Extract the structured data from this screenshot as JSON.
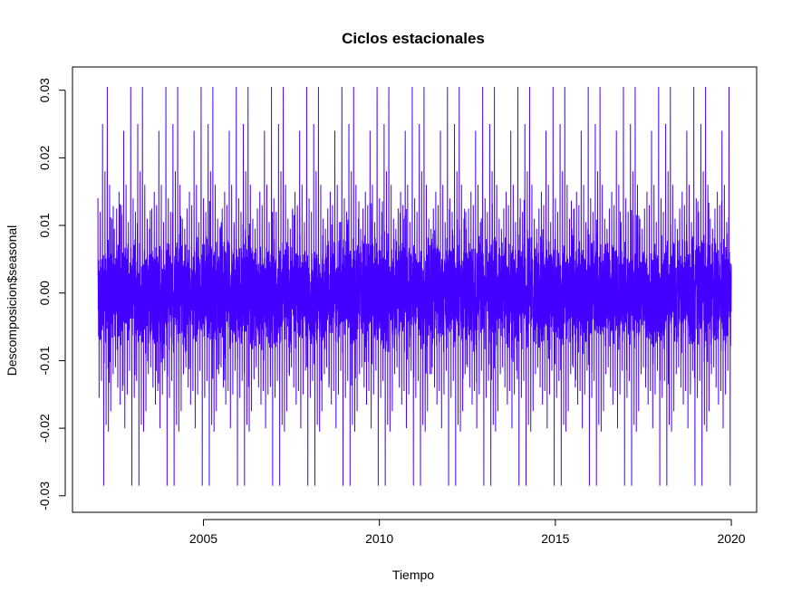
{
  "chart_data": {
    "type": "line",
    "title": "Ciclos estacionales",
    "xlabel": "Tiempo",
    "ylabel": "Descomposicion$seasonal",
    "xlim": [
      2002,
      2020
    ],
    "ylim": [
      -0.03,
      0.031
    ],
    "x_ticks": [
      2005,
      2010,
      2015,
      2020
    ],
    "y_ticks": [
      -0.03,
      -0.02,
      -0.01,
      0.0,
      0.01,
      0.02,
      0.03
    ],
    "y_tick_labels": [
      "-0.03",
      "-0.02",
      "-0.01",
      "0.00",
      "0.01",
      "0.02",
      "0.03"
    ],
    "grid": false,
    "series": [
      {
        "color": "#4400ff",
        "period_years": 1,
        "start": 2002,
        "end": 2020,
        "cycle_values": [
          0.014,
          -0.0155,
          0.012,
          -0.013,
          0.025,
          -0.0285,
          0.018,
          -0.0195,
          0.0305,
          -0.0205,
          0.016,
          -0.0175,
          0.011,
          -0.012,
          0.0095,
          -0.011,
          0.0125,
          -0.014,
          0.015,
          -0.0165,
          0.013,
          -0.0145,
          0.024,
          -0.02,
          0.016,
          -0.015,
          0.0105,
          -0.0115,
          0.0305,
          -0.0285
        ]
      }
    ]
  }
}
